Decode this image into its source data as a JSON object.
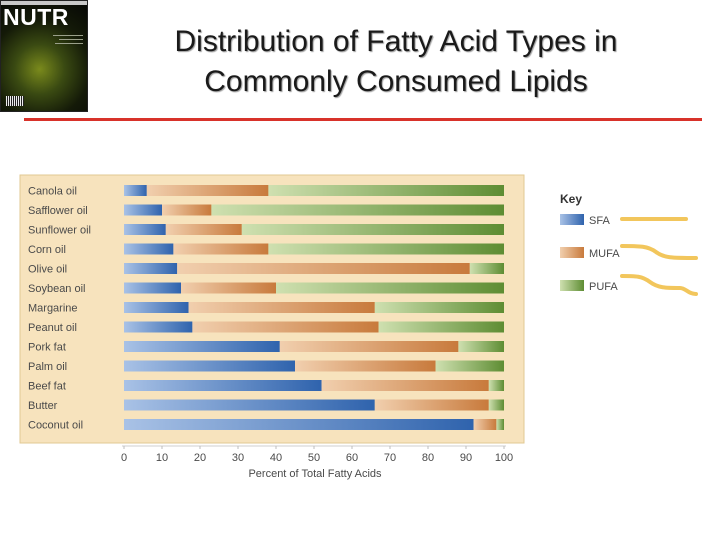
{
  "slide": {
    "title_line1": "Distribution of Fatty Acid Types in",
    "title_line2": "Commonly Consumed Lipids",
    "cover_title": "NUTR"
  },
  "chart_data": {
    "type": "bar",
    "orientation": "horizontal",
    "stacked": true,
    "categories": [
      "Canola oil",
      "Safflower oil",
      "Sunflower oil",
      "Corn oil",
      "Olive oil",
      "Soybean oil",
      "Margarine",
      "Peanut oil",
      "Pork fat",
      "Palm oil",
      "Beef fat",
      "Butter",
      "Coconut oil"
    ],
    "series": [
      {
        "name": "SFA",
        "values": [
          6,
          10,
          11,
          13,
          14,
          15,
          17,
          18,
          41,
          45,
          52,
          66,
          92
        ],
        "color": "#3f72b8"
      },
      {
        "name": "MUFA",
        "values": [
          32,
          13,
          20,
          25,
          77,
          25,
          49,
          49,
          47,
          37,
          44,
          30,
          6
        ],
        "color": "#d0864c"
      },
      {
        "name": "PUFA",
        "values": [
          62,
          77,
          69,
          62,
          9,
          60,
          34,
          33,
          12,
          18,
          4,
          4,
          2
        ],
        "color": "#6e9b3e"
      }
    ],
    "xlabel": "Percent of Total Fatty Acids",
    "xlim": [
      0,
      100
    ],
    "xticks": [
      0,
      10,
      20,
      30,
      40,
      50,
      60,
      70,
      80,
      90,
      100
    ],
    "legend": {
      "title": "Key",
      "placement": "right"
    },
    "background": "#f7e3bd"
  }
}
